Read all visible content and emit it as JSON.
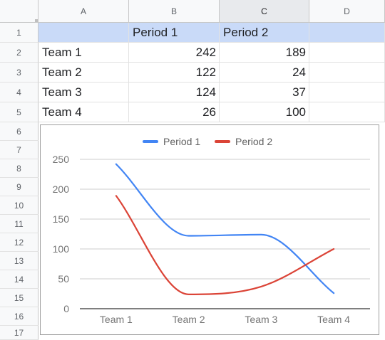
{
  "spreadsheet": {
    "columns": [
      "A",
      "B",
      "C",
      "D"
    ],
    "selected_column": "C",
    "rows": [
      "1",
      "2",
      "3",
      "4",
      "5",
      "6",
      "7",
      "8",
      "9",
      "10",
      "11",
      "12",
      "13",
      "14",
      "15",
      "16",
      "17"
    ],
    "header_row": {
      "a": "",
      "b": "Period 1",
      "c": "Period 2",
      "d": ""
    },
    "data_rows": [
      {
        "a": "Team 1",
        "b": "242",
        "c": "189"
      },
      {
        "a": "Team 2",
        "b": "122",
        "c": "24"
      },
      {
        "a": "Team 3",
        "b": "124",
        "c": "37"
      },
      {
        "a": "Team 4",
        "b": "26",
        "c": "100"
      }
    ]
  },
  "chart_data": {
    "type": "line",
    "smooth": true,
    "title": "",
    "xlabel": "",
    "ylabel": "",
    "categories": [
      "Team 1",
      "Team 2",
      "Team 3",
      "Team 4"
    ],
    "series": [
      {
        "name": "Period 1",
        "color": "#4285f4",
        "values": [
          242,
          122,
          124,
          26
        ]
      },
      {
        "name": "Period 2",
        "color": "#db4437",
        "values": [
          189,
          24,
          37,
          100
        ]
      }
    ],
    "ylim": [
      0,
      250
    ],
    "yticks": [
      "0",
      "50",
      "100",
      "150",
      "200",
      "250"
    ],
    "grid": true,
    "legend": "top"
  },
  "colors": {
    "header_highlight": "#c9daf8",
    "selected_column_header": "#e8eaed",
    "gridline": "#e2e2e2"
  }
}
